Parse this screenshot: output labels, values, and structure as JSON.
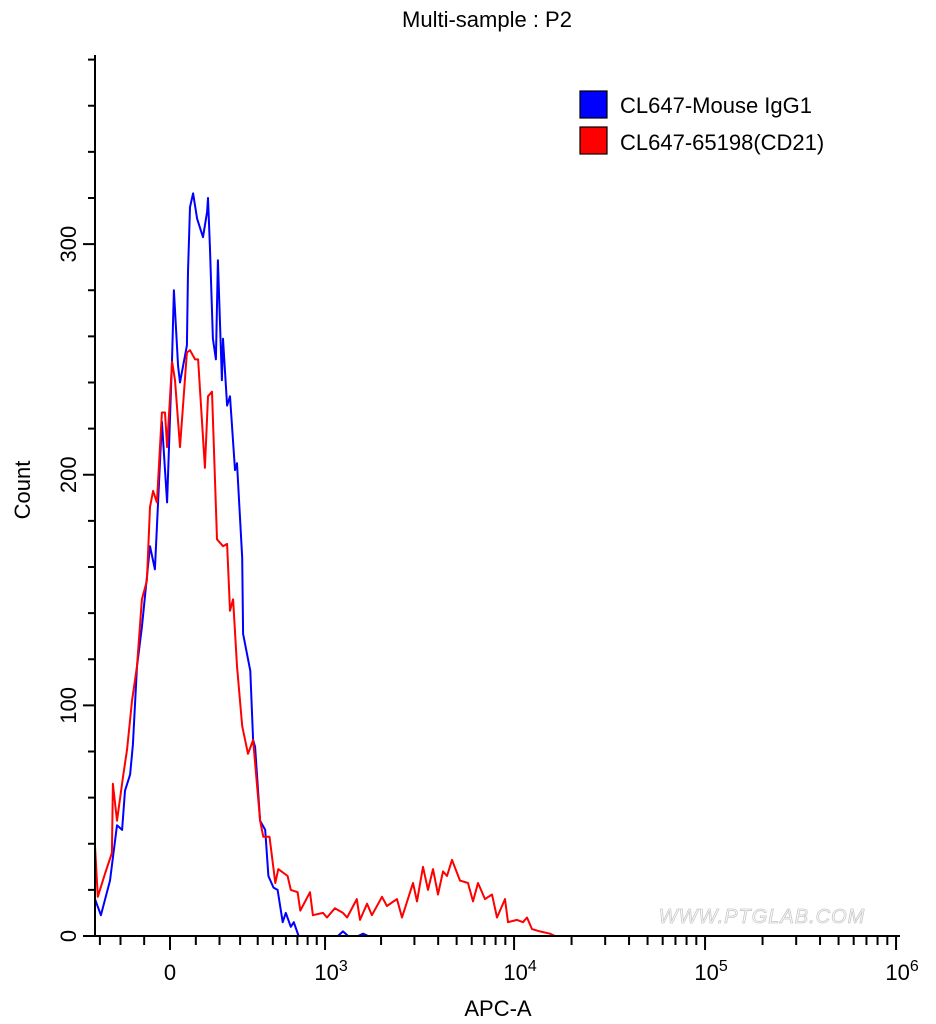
{
  "chart_data": {
    "type": "line",
    "title": "Multi-sample : P2",
    "xlabel": "APC-A",
    "ylabel": "Count",
    "x_scale": "biexponential",
    "xlim": [
      -326,
      1000000
    ],
    "ylim": [
      0,
      382
    ],
    "x_tick_labels": [
      {
        "value": 0,
        "label": "0"
      },
      {
        "value": 1000,
        "label": "10",
        "exp": "3"
      },
      {
        "value": 10000,
        "label": "10",
        "exp": "4"
      },
      {
        "value": 100000,
        "label": "10",
        "exp": "5"
      },
      {
        "value": 1000000,
        "label": "10",
        "exp": "6"
      }
    ],
    "y_ticks": [
      0,
      100,
      200,
      300
    ],
    "y_tick_labels": [
      "0",
      "100",
      "200",
      "300"
    ],
    "grid": false,
    "legend_position": "top-right",
    "watermark": "WWW.PTGLAB.COM",
    "series": [
      {
        "name": "CL647-Mouse IgG1",
        "color": "#0000ff",
        "x": [
          -326,
          -295,
          -249,
          -216,
          -193,
          -180,
          -158,
          -146,
          -129,
          -109,
          -77,
          -58,
          -31,
          -11,
          8,
          15,
          31,
          38,
          65,
          69,
          77,
          89,
          105,
          129,
          146,
          150,
          158,
          171,
          184,
          193,
          211,
          216,
          235,
          249,
          274,
          284,
          311,
          316,
          356,
          372,
          384,
          415,
          448,
          469,
          505,
          535,
          574,
          599,
          641,
          667,
          711,
          727,
          1175,
          1252,
          1334,
          1508,
          1605,
          1706
        ],
        "y": [
          16,
          9,
          24,
          48,
          46,
          63,
          70,
          83,
          117,
          134,
          169,
          159,
          223,
          188,
          251,
          280,
          247,
          240,
          256,
          288,
          316,
          322,
          311,
          303,
          314,
          320,
          299,
          259,
          250,
          293,
          241,
          259,
          230,
          234,
          202,
          205,
          164,
          131,
          115,
          85,
          82,
          50,
          46,
          26,
          21,
          20,
          6,
          10,
          4,
          6,
          0,
          0,
          0,
          2,
          0,
          0,
          1,
          0
        ]
      },
      {
        "name": "CL647-65198(CD21)",
        "color": "#ff0000",
        "x": [
          -326,
          -311,
          -274,
          -240,
          -235,
          -216,
          -189,
          -171,
          -150,
          -129,
          -109,
          -89,
          -77,
          -65,
          -50,
          -31,
          -19,
          -11,
          8,
          19,
          38,
          65,
          77,
          97,
          109,
          137,
          150,
          167,
          189,
          216,
          235,
          249,
          264,
          284,
          311,
          343,
          372,
          415,
          435,
          477,
          518,
          540,
          614,
          641,
          702,
          727,
          825,
          856,
          974,
          1025,
          1130,
          1252,
          1317,
          1486,
          1545,
          1685,
          1789,
          2022,
          2148,
          2427,
          2581,
          2949,
          3096,
          3327,
          3535,
          3755,
          3990,
          4240,
          4448,
          4730,
          5210,
          5735,
          6095,
          6472,
          7038,
          7663,
          8140,
          8962,
          9297,
          10365,
          11130,
          11690,
          12418,
          13675,
          15430,
          16380
        ],
        "y": [
          39,
          17,
          27,
          36,
          66,
          50,
          69,
          81,
          102,
          117,
          146,
          154,
          186,
          193,
          188,
          227,
          227,
          212,
          249,
          241,
          212,
          253,
          254,
          250,
          250,
          203,
          234,
          236,
          172,
          169,
          170,
          141,
          146,
          117,
          91,
          79,
          85,
          50,
          43,
          43,
          23,
          29,
          26,
          20,
          19,
          11,
          19,
          9,
          10,
          8,
          12,
          10,
          8,
          16,
          7,
          14,
          9,
          17,
          13,
          16,
          8,
          23,
          15,
          30,
          20,
          29,
          18,
          28,
          26,
          33,
          24,
          23,
          15,
          23,
          16,
          18,
          8,
          16,
          6,
          7,
          6,
          8,
          3,
          2,
          1,
          0
        ]
      }
    ]
  }
}
